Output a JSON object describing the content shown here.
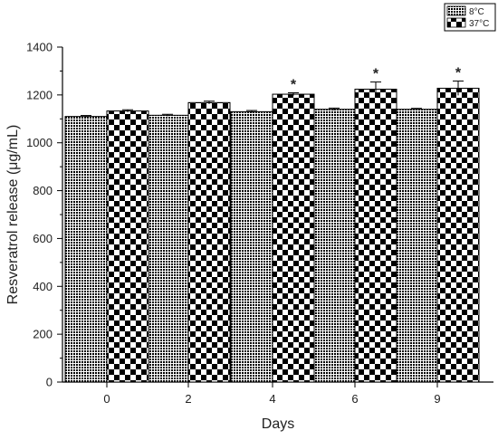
{
  "chart_data": {
    "type": "bar",
    "title": "",
    "xlabel": "Days",
    "ylabel": "Resveratrol release (μg/mL)",
    "categories": [
      "0",
      "2",
      "4",
      "6",
      "9"
    ],
    "ylim": [
      0,
      1400
    ],
    "yticks": [
      0,
      200,
      400,
      600,
      800,
      1000,
      1200,
      1400
    ],
    "legend_position": "top-right",
    "series": [
      {
        "name": "8°C",
        "pattern": "fine-dots",
        "values": [
          1110,
          1115,
          1130,
          1140,
          1140
        ],
        "errors": [
          4,
          4,
          5,
          5,
          4
        ]
      },
      {
        "name": "37°C",
        "pattern": "checker",
        "values": [
          1133,
          1168,
          1203,
          1224,
          1228
        ],
        "errors": [
          5,
          6,
          6,
          30,
          30
        ]
      }
    ],
    "annotations": [
      {
        "category": "4",
        "series": "37°C",
        "text": "*"
      },
      {
        "category": "6",
        "series": "37°C",
        "text": "*"
      },
      {
        "category": "9",
        "series": "37°C",
        "text": "*"
      }
    ]
  }
}
